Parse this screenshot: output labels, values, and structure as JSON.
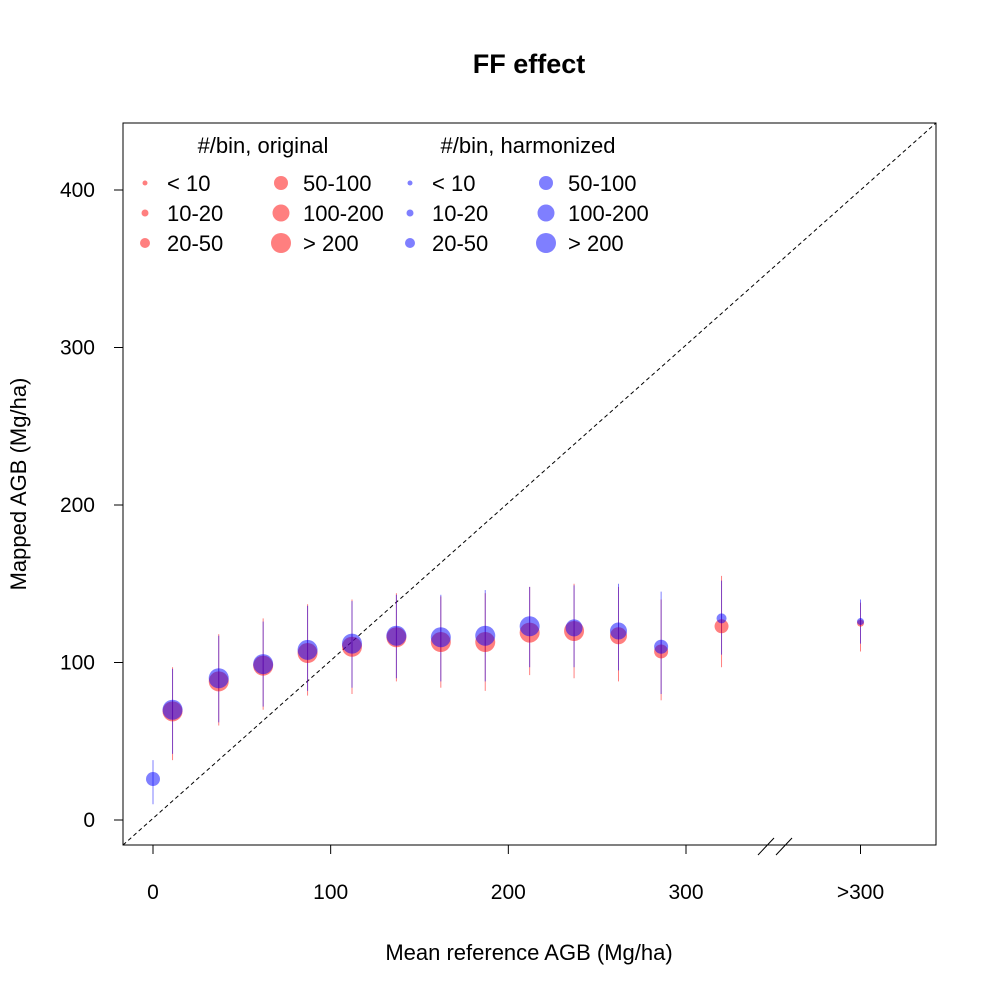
{
  "chart_data": {
    "type": "scatter",
    "title": "FF effect",
    "xlabel": "Mean reference AGB (Mg/ha)",
    "ylabel": "Mapped AGB (Mg/ha)",
    "xlim": [
      -17,
      340
    ],
    "ylim": [
      -15,
      443
    ],
    "x_ticks": [
      0,
      100,
      200,
      300
    ],
    "x_ticks_extra": [
      {
        "value": 300,
        "label": ">300"
      }
    ],
    "y_ticks": [
      0,
      100,
      200,
      300,
      400
    ],
    "axis_break": true,
    "reference_line": "1:1",
    "legend_placement": "top-left",
    "legend_groups": [
      {
        "title": "#/bin, original",
        "color": "#ff0000",
        "entries": [
          "< 10",
          "10-20",
          "20-50",
          "50-100",
          "100-200",
          "> 200"
        ]
      },
      {
        "title": "#/bin, harmonized",
        "color": "#0000ff",
        "entries": [
          "< 10",
          "10-20",
          "20-50",
          "50-100",
          "100-200",
          "> 200"
        ]
      }
    ],
    "series": [
      {
        "name": "original",
        "color": "#ff0000",
        "points": [
          {
            "x": 11,
            "y": 69,
            "lo": 38,
            "hi": 97,
            "size": 6
          },
          {
            "x": 37,
            "y": 88,
            "lo": 60,
            "hi": 118,
            "size": 6
          },
          {
            "x": 62,
            "y": 98,
            "lo": 70,
            "hi": 128,
            "size": 6
          },
          {
            "x": 87,
            "y": 106,
            "lo": 79,
            "hi": 137,
            "size": 6
          },
          {
            "x": 112,
            "y": 110,
            "lo": 80,
            "hi": 140,
            "size": 6
          },
          {
            "x": 137,
            "y": 116,
            "lo": 88,
            "hi": 144,
            "size": 6
          },
          {
            "x": 162,
            "y": 113,
            "lo": 84,
            "hi": 142,
            "size": 6
          },
          {
            "x": 187,
            "y": 113,
            "lo": 82,
            "hi": 144,
            "size": 6
          },
          {
            "x": 212,
            "y": 119,
            "lo": 92,
            "hi": 148,
            "size": 6
          },
          {
            "x": 237,
            "y": 120,
            "lo": 90,
            "hi": 150,
            "size": 6
          },
          {
            "x": 262,
            "y": 117,
            "lo": 88,
            "hi": 148,
            "size": 5
          },
          {
            "x": 286,
            "y": 107,
            "lo": 76,
            "hi": 140,
            "size": 4
          },
          {
            "x": 320,
            "y": 123,
            "lo": 97,
            "hi": 155,
            "size": 4
          },
          {
            "x": 400,
            "y": 125,
            "lo": 107,
            "hi": 138,
            "size": 2
          }
        ]
      },
      {
        "name": "harmonized",
        "color": "#0000ff",
        "points": [
          {
            "x": 0,
            "y": 26,
            "lo": 10,
            "hi": 38,
            "size": 4
          },
          {
            "x": 11,
            "y": 70,
            "lo": 42,
            "hi": 96,
            "size": 6
          },
          {
            "x": 37,
            "y": 90,
            "lo": 62,
            "hi": 117,
            "size": 6
          },
          {
            "x": 62,
            "y": 99,
            "lo": 72,
            "hi": 126,
            "size": 6
          },
          {
            "x": 87,
            "y": 108,
            "lo": 82,
            "hi": 136,
            "size": 6
          },
          {
            "x": 112,
            "y": 112,
            "lo": 84,
            "hi": 139,
            "size": 6
          },
          {
            "x": 137,
            "y": 117,
            "lo": 90,
            "hi": 143,
            "size": 6
          },
          {
            "x": 162,
            "y": 116,
            "lo": 88,
            "hi": 143,
            "size": 6
          },
          {
            "x": 187,
            "y": 117,
            "lo": 88,
            "hi": 146,
            "size": 6
          },
          {
            "x": 212,
            "y": 123,
            "lo": 97,
            "hi": 148,
            "size": 6
          },
          {
            "x": 237,
            "y": 122,
            "lo": 97,
            "hi": 149,
            "size": 5
          },
          {
            "x": 262,
            "y": 120,
            "lo": 95,
            "hi": 150,
            "size": 5
          },
          {
            "x": 286,
            "y": 110,
            "lo": 80,
            "hi": 145,
            "size": 4
          },
          {
            "x": 320,
            "y": 128,
            "lo": 105,
            "hi": 152,
            "size": 3
          },
          {
            "x": 400,
            "y": 126,
            "lo": 112,
            "hi": 140,
            "size": 2
          }
        ]
      }
    ]
  }
}
